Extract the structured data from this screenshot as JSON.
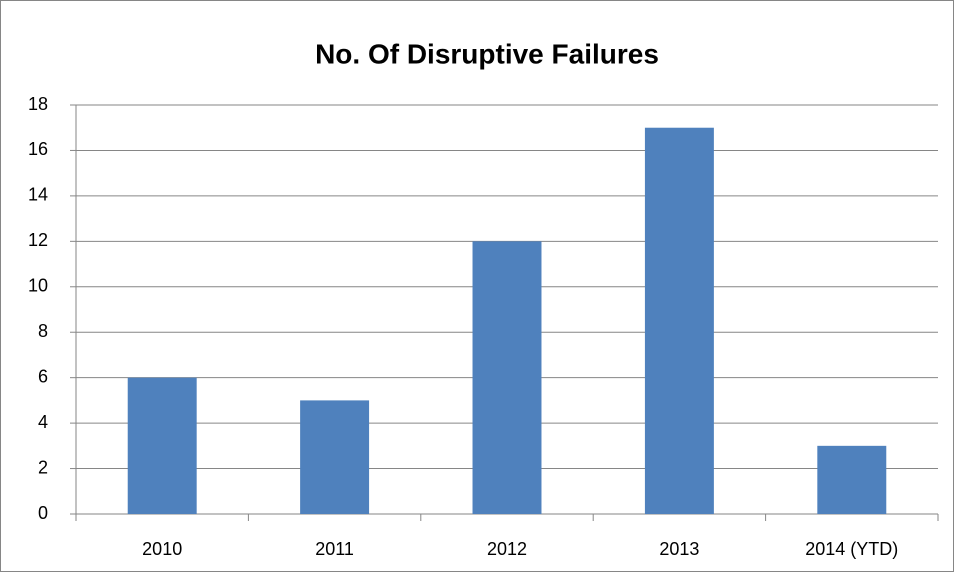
{
  "chart_data": {
    "type": "bar",
    "title": "No. Of Disruptive Failures",
    "categories": [
      "2010",
      "2011",
      "2012",
      "2013",
      "2014 (YTD)"
    ],
    "values": [
      6,
      5,
      12,
      17,
      3
    ],
    "color": "#4f81bd",
    "ylim": [
      0,
      18
    ],
    "yticks": [
      0,
      2,
      4,
      6,
      8,
      10,
      12,
      14,
      16,
      18
    ],
    "grid": true
  }
}
